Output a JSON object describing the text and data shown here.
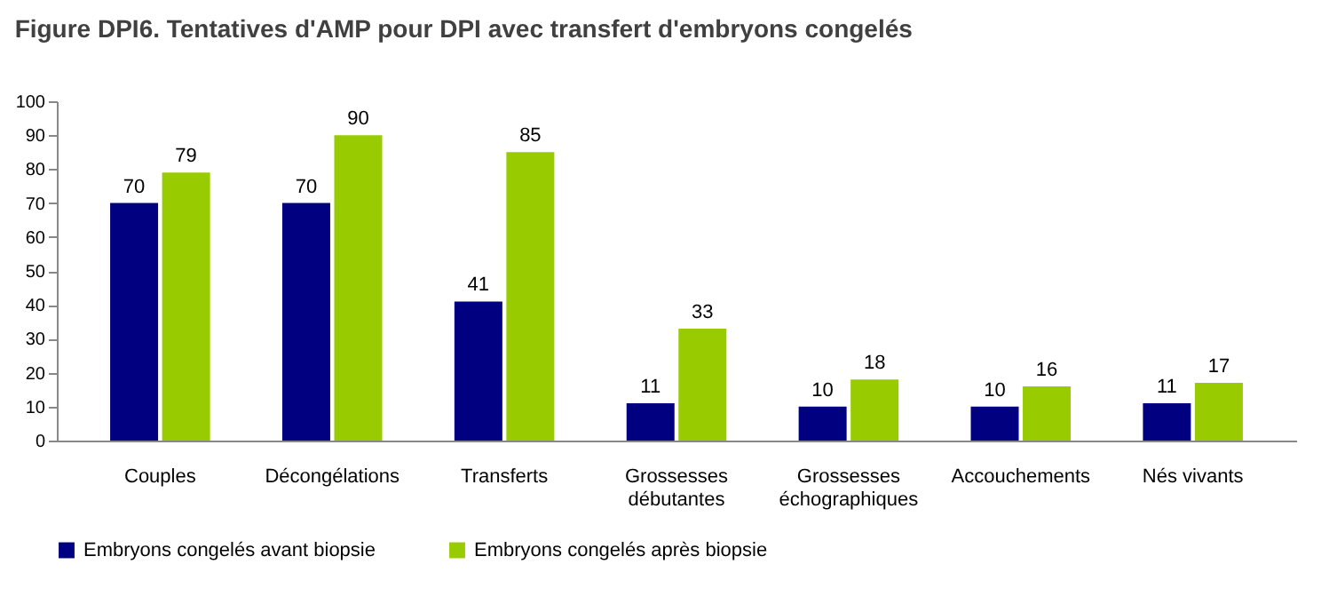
{
  "chart_data": {
    "type": "bar",
    "title": "Figure DPI6. Tentatives d'AMP pour DPI avec transfert d'embryons congelés",
    "categories": [
      "Couples",
      "Décongélations",
      "Transferts",
      "Grossesses\ndébutantes",
      "Grossesses\néchographiques",
      "Accouchements",
      "Nés vivants"
    ],
    "series": [
      {
        "name": "Embryons congelés avant biopsie",
        "color": "#000080",
        "values": [
          70,
          70,
          41,
          11,
          10,
          10,
          11
        ]
      },
      {
        "name": "Embryons congelés après biopsie",
        "color": "#99cc00",
        "values": [
          79,
          90,
          85,
          33,
          18,
          16,
          17
        ]
      }
    ],
    "ylim": [
      0,
      100
    ],
    "yticks": [
      0,
      10,
      20,
      30,
      40,
      50,
      60,
      70,
      80,
      90,
      100
    ],
    "grid": false,
    "legend": "bottom",
    "data_labels": true
  }
}
